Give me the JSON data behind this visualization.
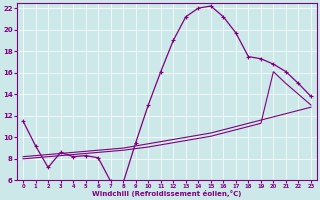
{
  "xlabel": "Windchill (Refroidissement éolien,°C)",
  "background_color": "#cce8e8",
  "line_color": "#800080",
  "xlim": [
    -0.5,
    23.5
  ],
  "ylim": [
    6,
    22.5
  ],
  "xticks": [
    0,
    1,
    2,
    3,
    4,
    5,
    6,
    7,
    8,
    9,
    10,
    11,
    12,
    13,
    14,
    15,
    16,
    17,
    18,
    19,
    20,
    21,
    22,
    23
  ],
  "yticks": [
    6,
    8,
    10,
    12,
    14,
    16,
    18,
    20,
    22
  ],
  "series1_x": [
    0,
    1,
    2,
    3,
    4,
    5,
    6,
    7,
    8,
    9,
    10,
    11,
    12,
    13,
    14,
    15,
    16,
    17,
    18,
    19,
    20,
    21,
    22,
    23
  ],
  "series1_y": [
    11.5,
    9.2,
    7.2,
    8.6,
    8.2,
    8.3,
    8.1,
    5.9,
    5.8,
    9.5,
    13.0,
    16.1,
    19.0,
    21.2,
    22.0,
    22.2,
    21.2,
    19.7,
    17.5,
    17.3,
    16.8,
    16.1,
    15.0,
    13.8
  ],
  "series2_x": [
    0,
    1,
    2,
    3,
    4,
    5,
    6,
    7,
    8,
    9,
    10,
    11,
    12,
    13,
    14,
    15,
    16,
    17,
    18,
    19,
    20,
    21,
    22,
    23
  ],
  "series2_y": [
    8.0,
    8.1,
    8.2,
    8.3,
    8.4,
    8.5,
    8.6,
    8.7,
    8.8,
    8.95,
    9.1,
    9.3,
    9.5,
    9.7,
    9.9,
    10.1,
    10.4,
    10.7,
    11.0,
    11.3,
    16.1,
    15.0,
    14.0,
    13.0
  ],
  "series3_x": [
    0,
    1,
    2,
    3,
    4,
    5,
    6,
    7,
    8,
    9,
    10,
    11,
    12,
    13,
    14,
    15,
    16,
    17,
    18,
    19,
    20,
    21,
    22,
    23
  ],
  "series3_y": [
    8.2,
    8.3,
    8.4,
    8.5,
    8.6,
    8.7,
    8.8,
    8.9,
    9.0,
    9.2,
    9.4,
    9.6,
    9.8,
    10.0,
    10.2,
    10.4,
    10.7,
    11.0,
    11.3,
    11.6,
    11.9,
    12.2,
    12.5,
    12.8
  ]
}
